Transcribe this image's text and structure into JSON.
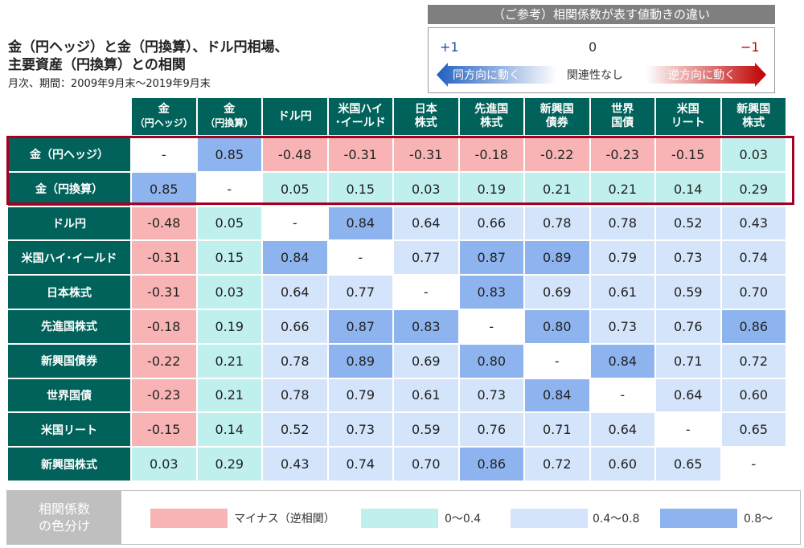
{
  "title_lines": [
    "金（円ヘッジ）と金（円換算）、ドル円相場、",
    "主要資産（円換算）との相関"
  ],
  "subtitle": "月次、期間：2009年9月末～2019年9月末",
  "reference": {
    "heading": "（ご参考）相関係数が表す値動きの違い",
    "plus": "+1",
    "zero": "0",
    "minus": "−1",
    "same_direction": "同方向に動く",
    "no_relation": "関連性なし",
    "opposite_direction": "逆方向に動く"
  },
  "colors": {
    "header": "#00625a",
    "negative": "#f8b4b4",
    "low": "#bff0ee",
    "mid": "#d4e4fb",
    "high": "#8eb4f0",
    "diagonal": "#ffffff",
    "highlight_border": "#a50021"
  },
  "chart_data": {
    "type": "table",
    "columns": [
      {
        "line1": "金",
        "line2": "（円ヘッジ）"
      },
      {
        "line1": "金",
        "line2": "（円換算）"
      },
      {
        "line1": "ドル円",
        "line2": ""
      },
      {
        "line1": "米国ハイ",
        "line2": "･イールド"
      },
      {
        "line1": "日本",
        "line2": "株式"
      },
      {
        "line1": "先進国",
        "line2": "株式"
      },
      {
        "line1": "新興国",
        "line2": "債券"
      },
      {
        "line1": "世界",
        "line2": "国債"
      },
      {
        "line1": "米国",
        "line2": "リート"
      },
      {
        "line1": "新興国",
        "line2": "株式"
      }
    ],
    "rows": [
      "金（円ヘッジ）",
      "金（円換算）",
      "ドル円",
      "米国ハイ･イールド",
      "日本株式",
      "先進国株式",
      "新興国債券",
      "世界国債",
      "米国リート",
      "新興国株式"
    ],
    "values": [
      [
        null,
        0.85,
        -0.48,
        -0.31,
        -0.31,
        -0.18,
        -0.22,
        -0.23,
        -0.15,
        0.03
      ],
      [
        0.85,
        null,
        0.05,
        0.15,
        0.03,
        0.19,
        0.21,
        0.21,
        0.14,
        0.29
      ],
      [
        -0.48,
        0.05,
        null,
        0.84,
        0.64,
        0.66,
        0.78,
        0.78,
        0.52,
        0.43
      ],
      [
        -0.31,
        0.15,
        0.84,
        null,
        0.77,
        0.87,
        0.89,
        0.79,
        0.73,
        0.74
      ],
      [
        -0.31,
        0.03,
        0.64,
        0.77,
        null,
        0.83,
        0.69,
        0.61,
        0.59,
        0.7
      ],
      [
        -0.18,
        0.19,
        0.66,
        0.87,
        0.83,
        null,
        0.8,
        0.73,
        0.76,
        0.86
      ],
      [
        -0.22,
        0.21,
        0.78,
        0.89,
        0.69,
        0.8,
        null,
        0.84,
        0.71,
        0.72
      ],
      [
        -0.23,
        0.21,
        0.78,
        0.79,
        0.61,
        0.73,
        0.84,
        null,
        0.64,
        0.6
      ],
      [
        -0.15,
        0.14,
        0.52,
        0.73,
        0.59,
        0.76,
        0.71,
        0.64,
        null,
        0.65
      ],
      [
        0.03,
        0.29,
        0.43,
        0.74,
        0.7,
        0.86,
        0.72,
        0.6,
        0.65,
        null
      ]
    ],
    "diagonal_text": "-",
    "highlighted_rows": [
      "金（円ヘッジ）",
      "金（円換算）"
    ]
  },
  "legend": {
    "title": "相関係数\nの色分け",
    "items": [
      {
        "label": "マイナス（逆相関）",
        "color": "#f8b4b4"
      },
      {
        "label": "0～0.4",
        "color": "#bff0ee"
      },
      {
        "label": "0.4～0.8",
        "color": "#d4e4fb"
      },
      {
        "label": "0.8～",
        "color": "#8eb4f0"
      }
    ]
  }
}
